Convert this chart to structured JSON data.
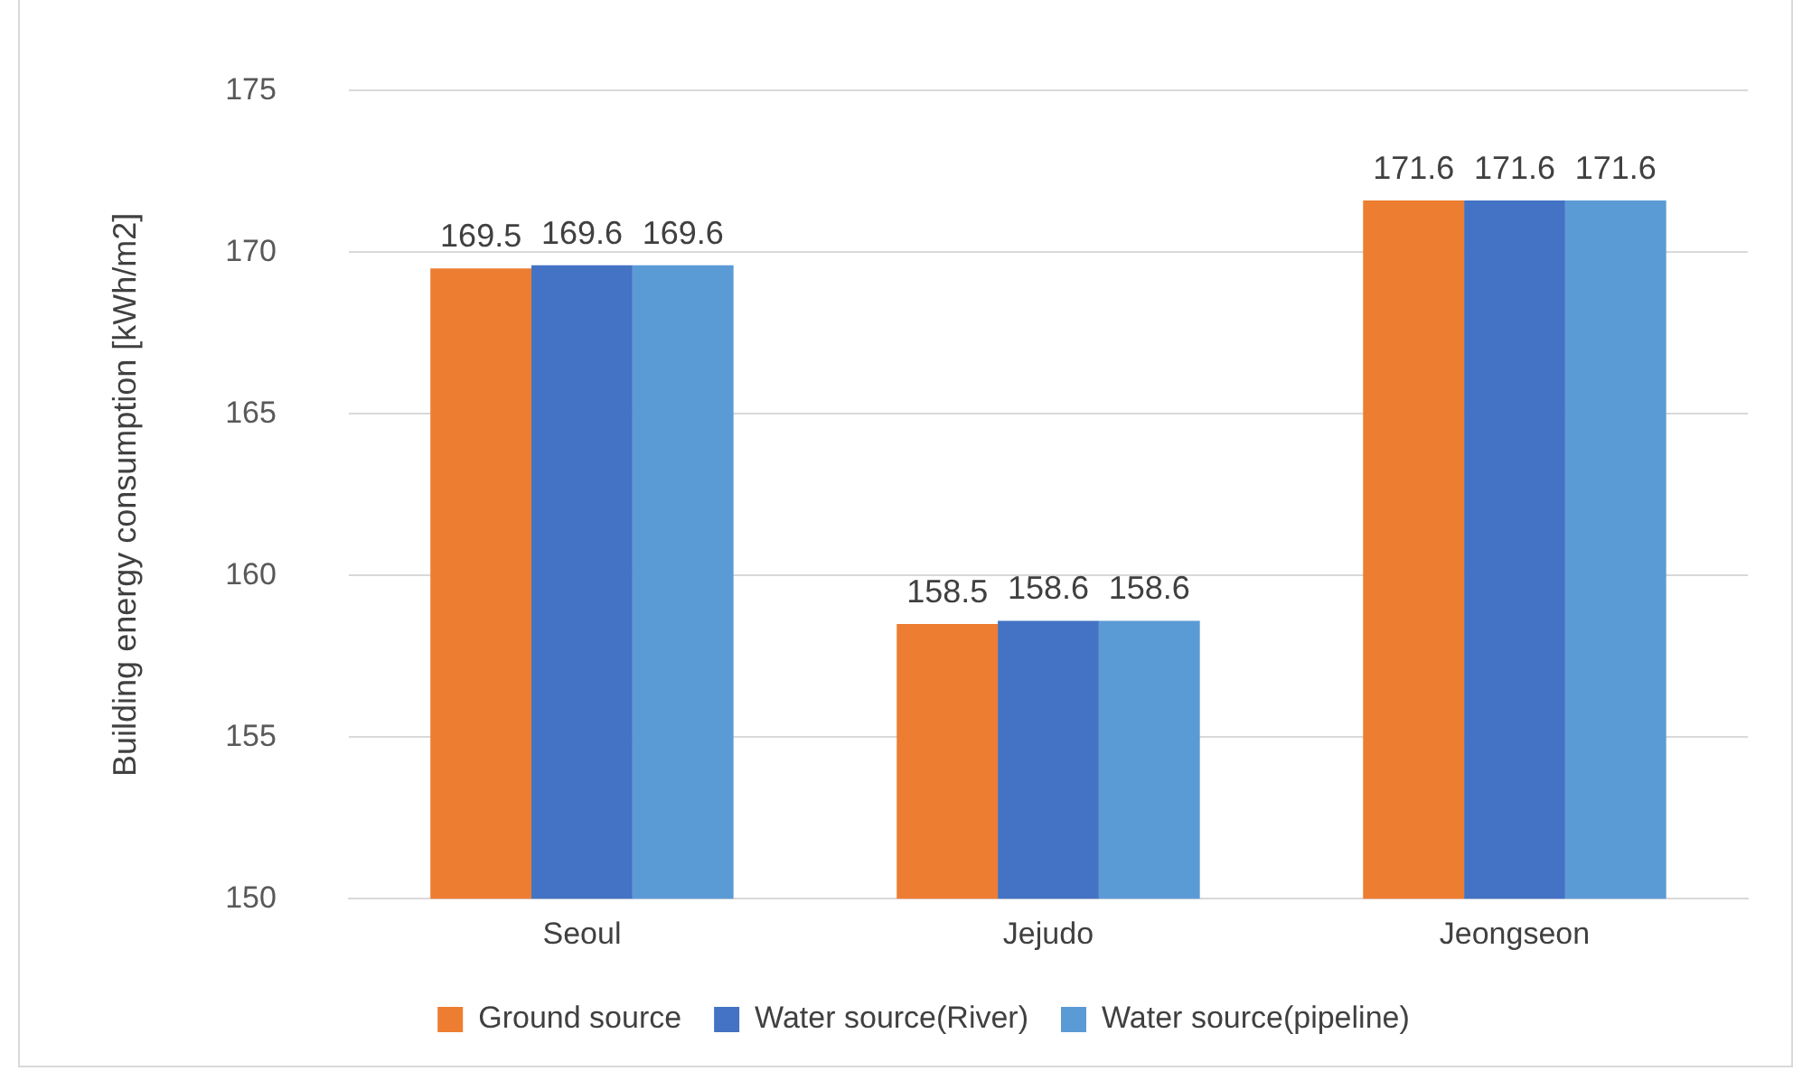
{
  "chart_data": {
    "type": "bar",
    "ylabel": "Building energy consumption [kWh/m2]",
    "categories": [
      "Seoul",
      "Jejudo",
      "Jeongseon"
    ],
    "series": [
      {
        "name": "Ground source",
        "color": "#ed7d31",
        "values": [
          169.5,
          158.5,
          171.6
        ]
      },
      {
        "name": "Water source(River)",
        "color": "#4472c4",
        "values": [
          169.6,
          158.6,
          171.6
        ]
      },
      {
        "name": "Water source(pipeline)",
        "color": "#5b9bd5",
        "values": [
          169.6,
          158.6,
          171.6
        ]
      }
    ],
    "ylim": [
      150,
      175
    ],
    "yticks": [
      150,
      155,
      160,
      165,
      170,
      175
    ],
    "grid": "y",
    "legend": "bottom",
    "data_labels": true
  }
}
